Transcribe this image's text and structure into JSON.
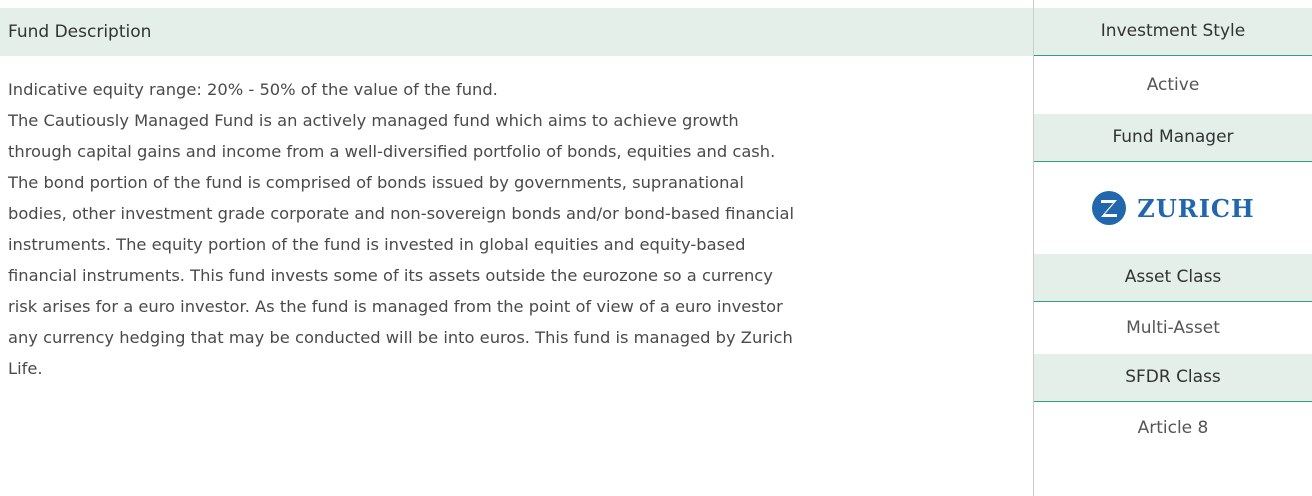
{
  "description": {
    "title": "Fund Description",
    "paragraphs": [
      "Indicative equity range: 20% - 50% of the value of the fund.",
      "The Cautiously Managed Fund is an actively managed fund which aims to achieve growth through capital gains and income from a well-diversified portfolio of bonds, equities and cash. The bond portion of the fund is comprised of bonds issued by governments, supranational bodies, other investment grade corporate and non-sovereign bonds and/or bond-based financial instruments. The equity portion of the fund is invested in global equities and equity-based financial instruments. This fund invests some of its assets outside the eurozone so a currency risk arises for a euro investor. As the fund is managed from the point of view of a euro investor any currency hedging that may be conducted will be into euros. This fund is managed by Zurich Life."
    ]
  },
  "details": [
    {
      "label": "Investment Style",
      "value": "Active"
    },
    {
      "label": "Fund Manager",
      "logo": "ZURICH"
    },
    {
      "label": "Asset Class",
      "value": "Multi-Asset"
    },
    {
      "label": "SFDR Class",
      "value": "Article 8"
    }
  ]
}
